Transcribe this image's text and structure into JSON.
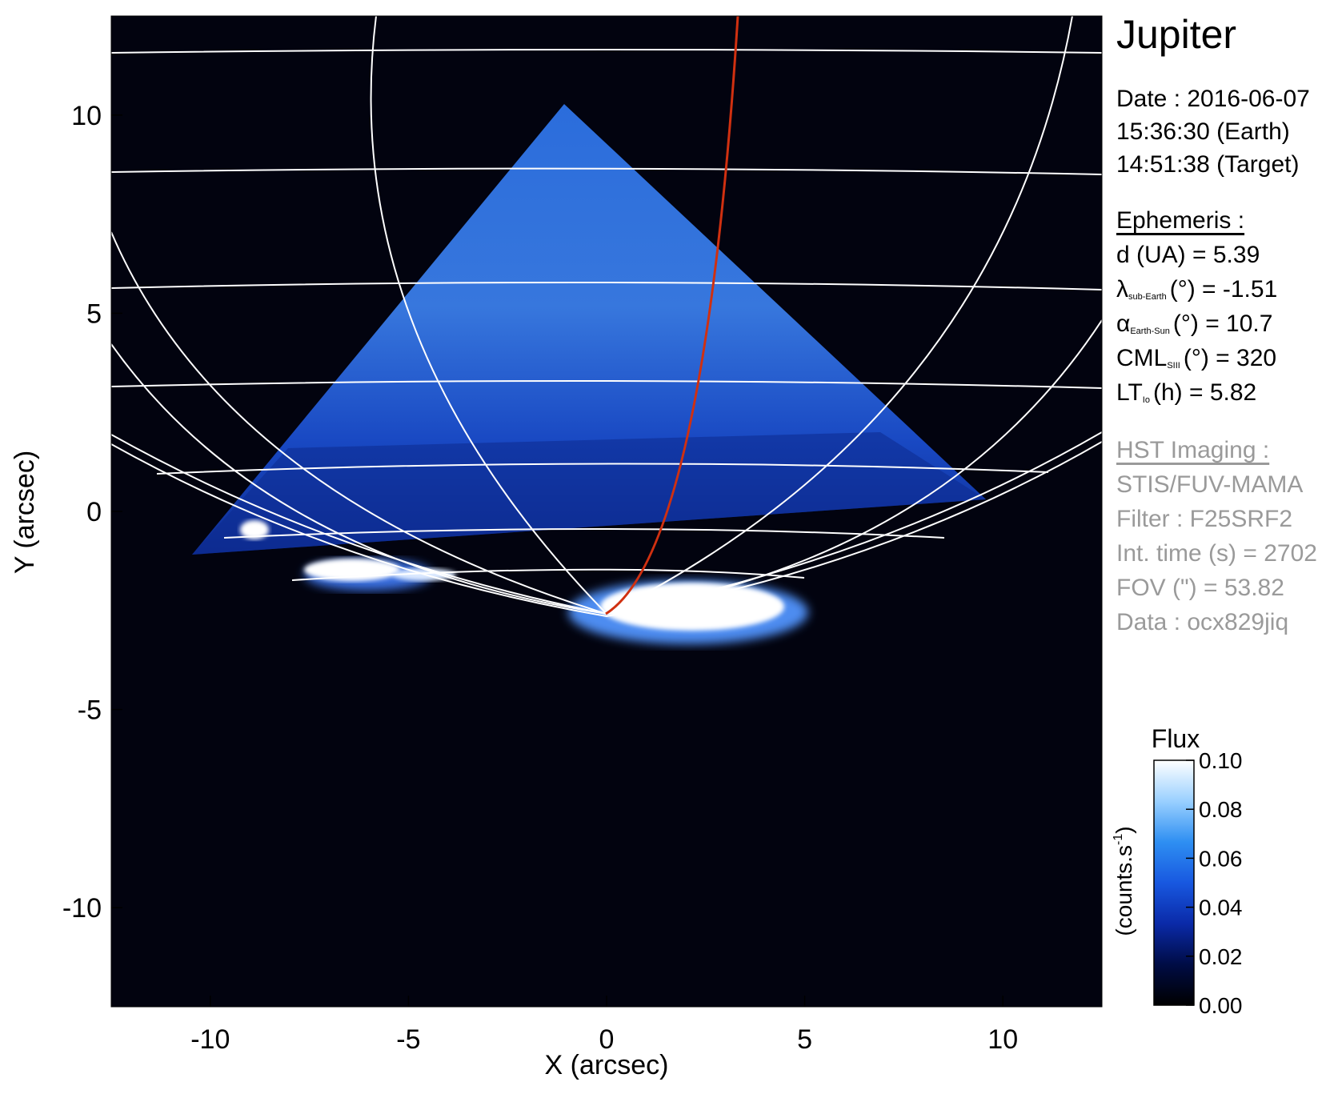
{
  "title": "Jupiter",
  "info": {
    "date": "Date : 2016-06-07",
    "time_earth": "15:36:30 (Earth)",
    "time_target": "14:51:38 (Target)"
  },
  "ephemeris": {
    "header": "Ephemeris :",
    "d": "d (UA)    = 5.39",
    "lat_sym": "λ",
    "lat_sub": "sub-Earth",
    "lat_rest": "(°) = -1.51",
    "phase_sym": "α",
    "phase_sub": "Earth-Sun",
    "phase_rest": "(°) = 10.7",
    "cml_sym": "CML",
    "cml_sub": "SIII",
    "cml_rest": "(°) = 320",
    "lt_sym": "LT",
    "lt_sub": "Io",
    "lt_rest": "(h) = 5.82"
  },
  "hst": {
    "header": "HST Imaging :",
    "instrument": "STIS/FUV-MAMA",
    "filter": "Filter : F25SRF2",
    "int_time": "Int. time (s) = 2702",
    "fov": "FOV (\") = 53.82",
    "data": "Data : ocx829jiq"
  },
  "colorbar": {
    "title": "Flux",
    "label": "(counts.s",
    "label_sup": "-1",
    "label_end": ")",
    "ticks": [
      "0.10",
      "0.08",
      "0.06",
      "0.04",
      "0.02",
      "0.00"
    ],
    "tick_values": [
      0.1,
      0.08,
      0.06,
      0.04,
      0.02,
      0.0
    ],
    "range": [
      0.0,
      0.1
    ],
    "colors": [
      "#000000",
      "#000c45",
      "#0a2aa8",
      "#1858e0",
      "#2e8ff2",
      "#9ad0ff",
      "#ffffff"
    ]
  },
  "chart_data": {
    "type": "heatmap",
    "title": "",
    "xlabel": "X (arcsec)",
    "ylabel": "Y (arcsec)",
    "xlim": [
      -12.5,
      12.5
    ],
    "ylim": [
      -12.5,
      12.5
    ],
    "xticks": [
      -10,
      -5,
      0,
      5,
      10
    ],
    "yticks": [
      10,
      5,
      0,
      -5,
      -10
    ],
    "grid": true,
    "colors": {
      "background": "#000000",
      "grid": "#ffffff",
      "io_footpath": "#d03010",
      "disk": "#1f5ee0",
      "aurora": "#ffffff"
    }
  }
}
